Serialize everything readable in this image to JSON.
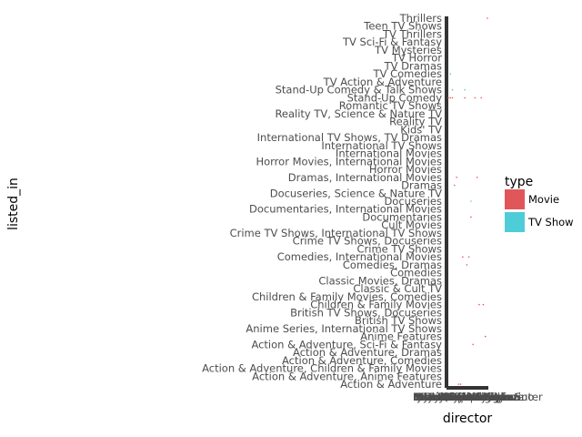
{
  "chart_data": {
    "type": "scatter",
    "xlabel": "director",
    "ylabel": "listed_in",
    "y_tick_labels": [
      "Action & Adventure",
      "Action & Adventure, Anime Features",
      "Action & Adventure, Children & Family Movies",
      "Action & Adventure, Comedies",
      "Action & Adventure, Dramas",
      "Action & Adventure, Sci-Fi & Fantasy",
      "Anime Features",
      "Anime Series, International TV Shows",
      "British TV Shows",
      "British TV Shows, Docuseries",
      "Children & Family Movies",
      "Children & Family Movies, Comedies",
      "Classic & Cult TV",
      "Classic Movies, Dramas",
      "Comedies",
      "Comedies, Dramas",
      "Comedies, International Movies",
      "Crime TV Shows",
      "Crime TV Shows, Docuseries",
      "Crime TV Shows, International TV Shows",
      "Cult Movies",
      "Documentaries",
      "Documentaries, International Movies",
      "Docuseries",
      "Docuseries, Science & Nature TV",
      "Dramas",
      "Dramas, International Movies",
      "Horror Movies",
      "Horror Movies, International Movies",
      "International Movies",
      "International TV Shows",
      "International TV Shows, TV Dramas",
      "Kids' TV",
      "Reality TV",
      "Reality TV, Science & Nature TV",
      "Romantic TV Shows",
      "Stand-Up Comedy",
      "Stand-Up Comedy & Talk Shows",
      "TV Action & Adventure",
      "TV Comedies",
      "TV Dramas",
      "TV Horror",
      "TV Mysteries",
      "TV Sci-Fi & Fantasy",
      "TV Thrillers",
      "Teen TV Shows",
      "Thrillers"
    ],
    "x_tick_labels": [
      "Jay Karas",
      "Marcus Raboy",
      "Jay Chapman",
      "Martin Scorsese",
      "Youssef Chahine",
      "Steven Spielberg",
      "Don Michael Paul",
      "David Dhawan",
      "Shannon Hartman",
      "Cathy Garcia-Molina",
      "Hakan Algül",
      "Lance Bangs",
      "Robert Rodriguez",
      "Ryan Polito",
      "Kunle Afolayan",
      "Rajiv Chilaka",
      "Raúl Campos, Jan Suter",
      "Suhas Kadav",
      "Hidenori Inoue",
      "Quentin Tarantino"
    ],
    "points": [
      {
        "x": "Jay Karas",
        "y": "Stand-Up Comedy",
        "type": "Movie"
      },
      {
        "x": "Marcus Raboy",
        "y": "Stand-Up Comedy",
        "type": "Movie"
      },
      {
        "x": "Martin Scorsese",
        "y": "Dramas",
        "type": "Movie"
      },
      {
        "x": "Youssef Chahine",
        "y": "Dramas, International Movies",
        "type": "Movie"
      },
      {
        "x": "Steven Spielberg",
        "y": "Action & Adventure",
        "type": "Movie"
      },
      {
        "x": "Don Michael Paul",
        "y": "Action & Adventure",
        "type": "Movie"
      },
      {
        "x": "David Dhawan",
        "y": "Comedies, International Movies",
        "type": "Movie"
      },
      {
        "x": "Cathy Garcia-Molina",
        "y": "Comedies, Dramas",
        "type": "Movie"
      },
      {
        "x": "Rajiv Chilaka",
        "y": "Children & Family Movies",
        "type": "Movie"
      },
      {
        "x": "Suhas Kadav",
        "y": "Children & Family Movies",
        "type": "Movie"
      },
      {
        "x": "Raúl Campos, Jan Suter",
        "y": "Stand-Up Comedy",
        "type": "Movie"
      },
      {
        "x": "Quentin Tarantino",
        "y": "Thrillers",
        "type": "Movie"
      },
      {
        "x": "Robert Rodriguez",
        "y": "Action & Adventure, Sci-Fi & Fantasy",
        "type": "Movie"
      },
      {
        "x": "Kunle Afolayan",
        "y": "Dramas, International Movies",
        "type": "Movie"
      },
      {
        "x": "Hidenori Inoue",
        "y": "Anime Features",
        "type": "Movie"
      },
      {
        "x": "Lance Bangs",
        "y": "Documentaries",
        "type": "Movie"
      },
      {
        "x": "Jay Chapman",
        "y": "Stand-Up Comedy",
        "type": "Movie"
      },
      {
        "x": "Ryan Polito",
        "y": "Stand-Up Comedy",
        "type": "Movie"
      },
      {
        "x": "Hakan Algül",
        "y": "Comedies, International Movies",
        "type": "Movie"
      },
      {
        "x": "Shannon Hartman",
        "y": "Stand-Up Comedy",
        "type": "Movie"
      },
      {
        "x": "Marcus Raboy",
        "y": "TV Comedies",
        "type": "TV Show"
      },
      {
        "x": "Jay Chapman",
        "y": "Stand-Up Comedy & Talk Shows",
        "type": "TV Show"
      },
      {
        "x": "Lance Bangs",
        "y": "Docuseries",
        "type": "TV Show"
      },
      {
        "x": "Shannon Hartman",
        "y": "Stand-Up Comedy & Talk Shows",
        "type": "TV Show"
      }
    ],
    "legend": {
      "title": "type",
      "position": "right",
      "items": [
        {
          "label": "Movie",
          "color": "#e15759"
        },
        {
          "label": "TV Show",
          "color": "#4ecdd8"
        }
      ]
    },
    "grid": false
  }
}
